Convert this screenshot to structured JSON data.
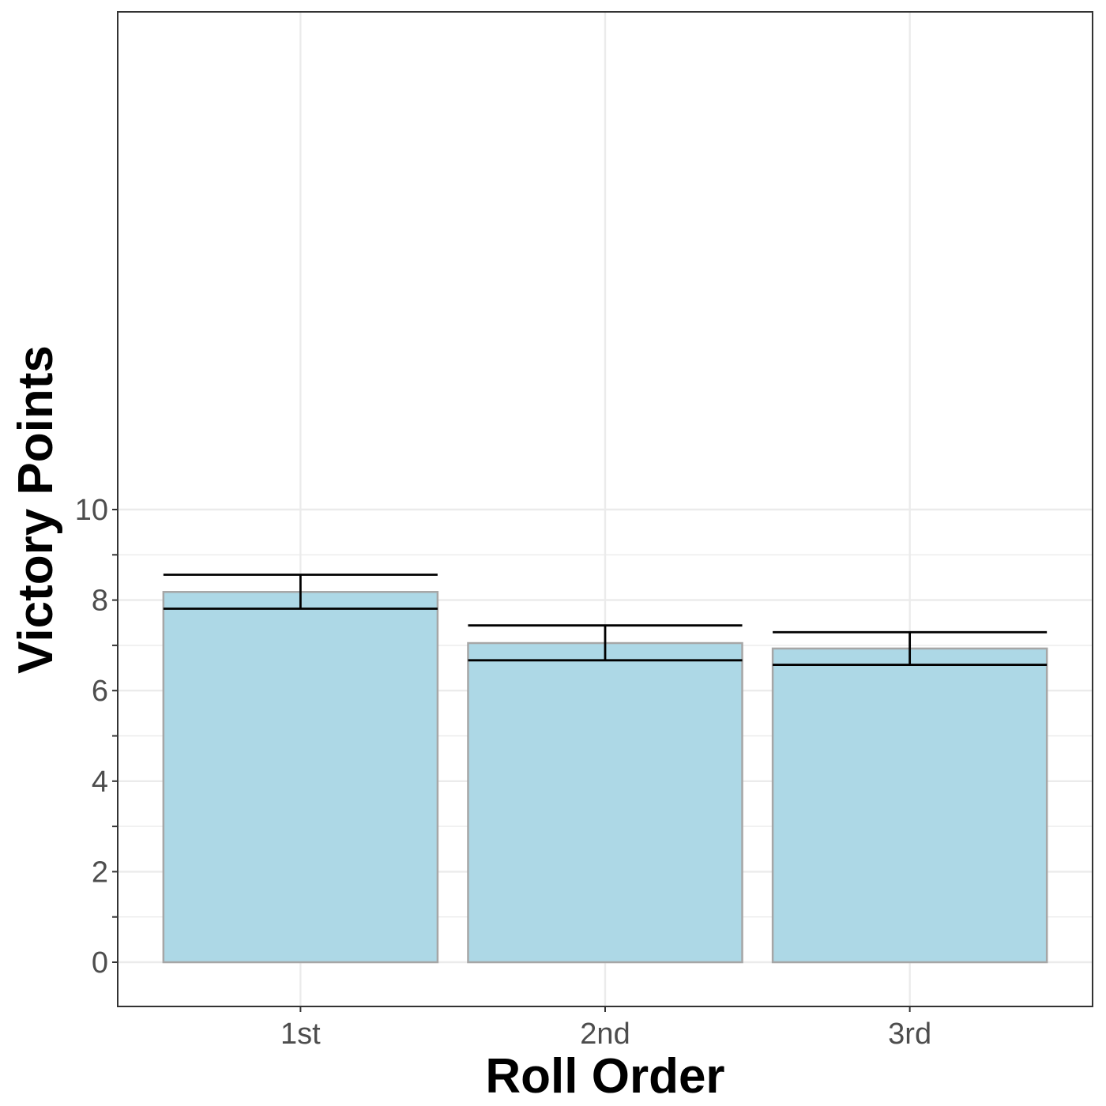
{
  "chart_data": {
    "type": "bar",
    "title": "",
    "xlabel": "Roll Order",
    "ylabel": "Victory Points",
    "categories": [
      "1st",
      "2nd",
      "3rd"
    ],
    "values": [
      8.18,
      7.05,
      6.93
    ],
    "error_bars": [
      {
        "low": 7.81,
        "high": 8.56
      },
      {
        "low": 6.67,
        "high": 7.44
      },
      {
        "low": 6.57,
        "high": 7.29
      }
    ],
    "ylim": [
      -0.5,
      10.5
    ],
    "yticks": [
      0,
      2,
      4,
      6,
      8,
      10
    ],
    "grid": true,
    "legend": "none",
    "colors": {
      "bar_fill": "#add8e6",
      "bar_stroke": "#a6a6a6",
      "error_bar": "#000000",
      "grid": "#ebebeb",
      "panel_border": "#333333"
    }
  }
}
